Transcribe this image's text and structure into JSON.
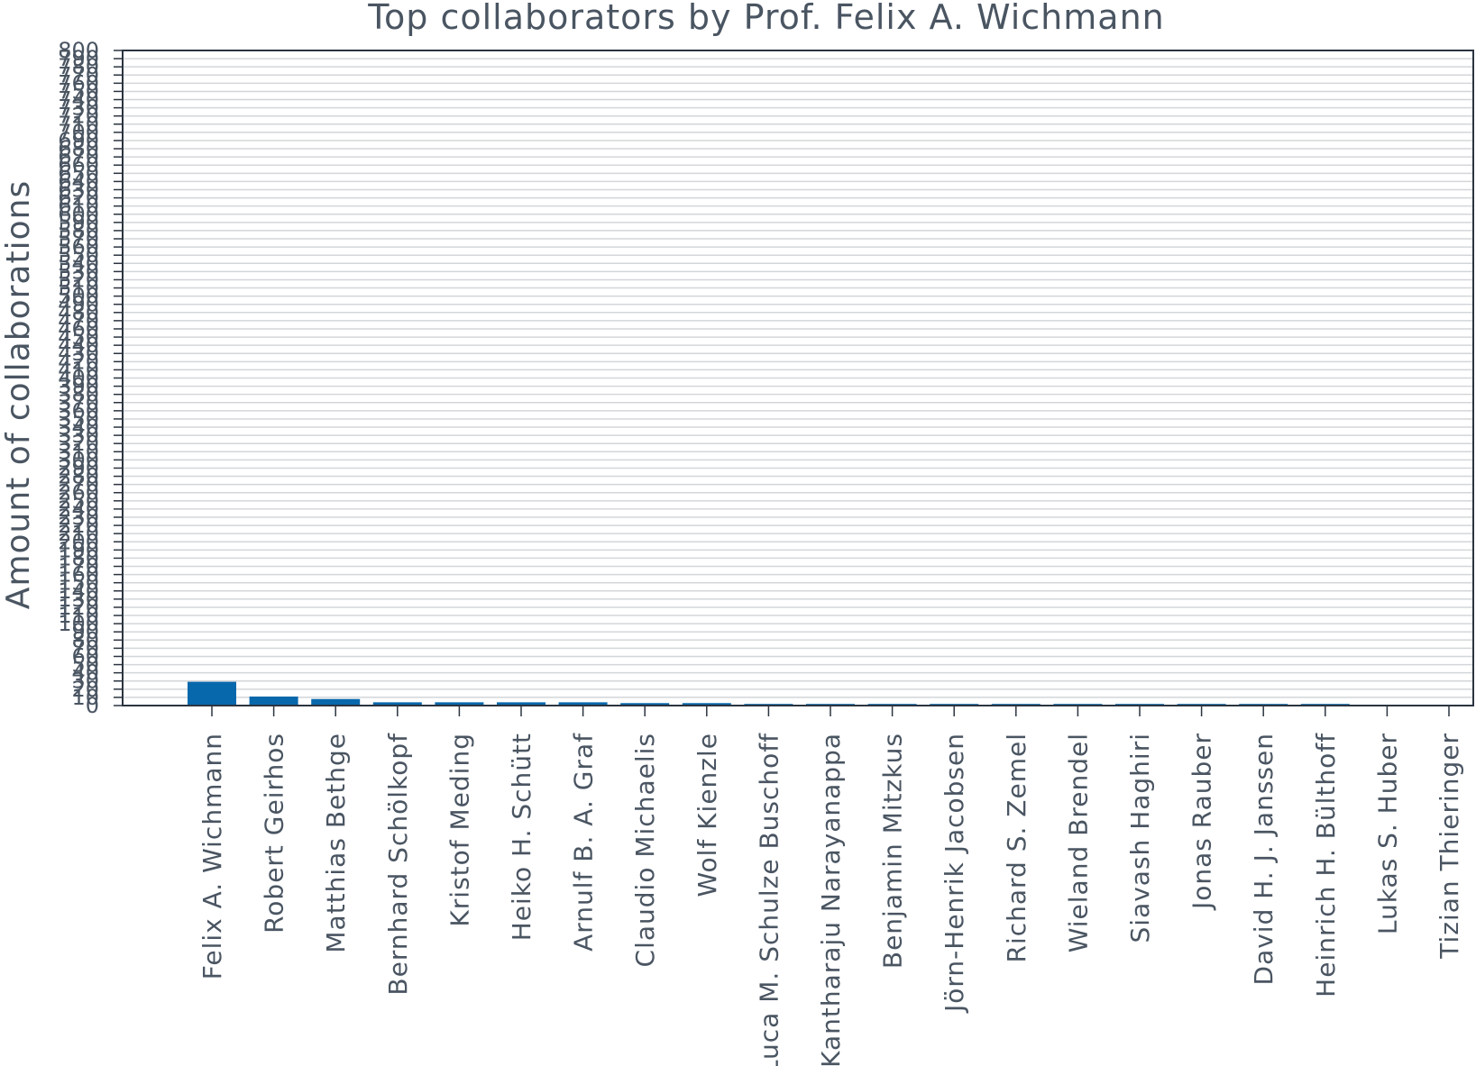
{
  "chart_data": {
    "type": "bar",
    "title": "Top collaborators by Prof. Felix A. Wichmann",
    "xlabel": "",
    "ylabel": "Amount of collaborations",
    "ylim": [
      0,
      800
    ],
    "ytick_step": 10,
    "grid": true,
    "categories": [
      "Felix A. Wichmann",
      "Robert Geirhos",
      "Matthias Bethge",
      "Bernhard Schölkopf",
      "Kristof Meding",
      "Heiko H. Schütt",
      "Arnulf B. A. Graf",
      "Claudio Michaelis",
      "Wolf Kienzle",
      "Luca M. Schulze Buschoff",
      "Kantharaju Narayanappa",
      "Benjamin Mitzkus",
      "Jörn-Henrik Jacobsen",
      "Richard S. Zemel",
      "Wieland Brendel",
      "Siavash Haghiri",
      "Jonas Rauber",
      "David H. J. Janssen",
      "Heinrich H. Bülthoff",
      "Lukas S. Huber",
      "Tizian Thieringer"
    ],
    "values": [
      29,
      11,
      8,
      4,
      4,
      4,
      4,
      3,
      3,
      2,
      2,
      2,
      2,
      2,
      2,
      2,
      2,
      2,
      2,
      1,
      1
    ],
    "bar_color": "#0868ac",
    "grid_color": "#d3d6d9",
    "text_color": "#4a5562"
  }
}
